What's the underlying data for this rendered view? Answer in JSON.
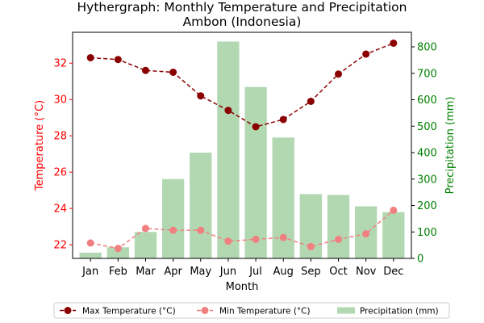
{
  "chart_data": {
    "type": "bar",
    "title": "Hythergraph: Monthly Temperature and Precipitation",
    "subtitle": "Ambon (Indonesia)",
    "xlabel": "Month",
    "ylabel_left": "Temperature (°C)",
    "ylabel_right": "Precipitation (mm)",
    "categories": [
      "Jan",
      "Feb",
      "Mar",
      "Apr",
      "May",
      "Jun",
      "Jul",
      "Aug",
      "Sep",
      "Oct",
      "Nov",
      "Dec"
    ],
    "ylim_left": [
      21.25,
      33.7
    ],
    "yticks_left": [
      22,
      24,
      26,
      28,
      30,
      32
    ],
    "ylim_right": [
      0,
      855
    ],
    "yticks_right": [
      0,
      100,
      200,
      300,
      400,
      500,
      600,
      700,
      800
    ],
    "series": [
      {
        "name": "Max Temperature (°C)",
        "kind": "line",
        "axis": "left",
        "color": "#8b0000",
        "values": [
          32.3,
          32.2,
          31.6,
          31.5,
          30.2,
          29.4,
          28.5,
          28.9,
          29.9,
          31.4,
          32.5,
          33.1
        ]
      },
      {
        "name": "Min Temperature (°C)",
        "kind": "line",
        "axis": "left",
        "color": "#f08080",
        "values": [
          22.1,
          21.8,
          22.9,
          22.8,
          22.8,
          22.2,
          22.3,
          22.4,
          21.9,
          22.3,
          22.6,
          23.9
        ]
      },
      {
        "name": "Precipitation (mm)",
        "kind": "bar",
        "axis": "right",
        "color": "#b2d8b2",
        "values": [
          22,
          42,
          100,
          300,
          400,
          820,
          648,
          457,
          243,
          240,
          197,
          175
        ]
      }
    ],
    "left_axis_color": "#ff0000",
    "right_axis_color": "#008000",
    "legend_position": "bottom"
  }
}
